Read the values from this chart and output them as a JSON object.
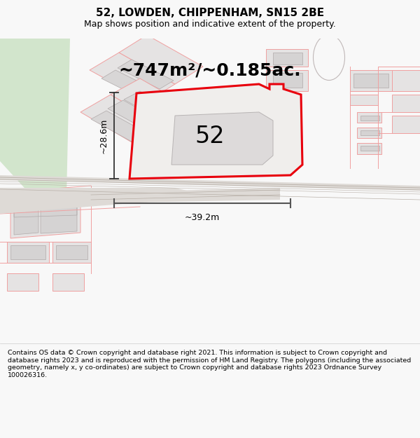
{
  "title": "52, LOWDEN, CHIPPENHAM, SN15 2BE",
  "subtitle": "Map shows position and indicative extent of the property.",
  "area_text": "~747m²/~0.185ac.",
  "label_52": "52",
  "dim_height": "~28.6m",
  "dim_width": "~39.2m",
  "footer": "Contains OS data © Crown copyright and database right 2021. This information is subject to Crown copyright and database rights 2023 and is reproduced with the permission of HM Land Registry. The polygons (including the associated geometry, namely x, y co-ordinates) are subject to Crown copyright and database rights 2023 Ordnance Survey 100026316.",
  "bg_color": "#f8f8f8",
  "map_bg": "#f5f3f0",
  "red_line": "#e8000d",
  "pink_line": "#f0a0a0",
  "gray_bld": "#e0dede",
  "gray_outline": "#c0bcbc",
  "dark_dim": "#555555",
  "green_area": "#d5e5d0",
  "road_color": "#dedad6",
  "road_line": "#b8b0a8",
  "title_fontsize": 11,
  "subtitle_fontsize": 9,
  "area_fontsize": 18,
  "label_fontsize": 24,
  "dim_fontsize": 9,
  "footer_fontsize": 6.8
}
